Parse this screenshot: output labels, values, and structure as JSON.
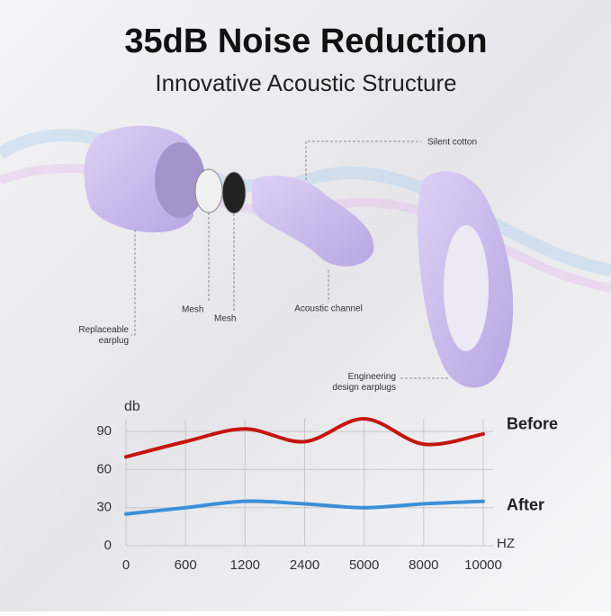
{
  "header": {
    "title": "35dB Noise Reduction",
    "subtitle": "Innovative Acoustic Structure"
  },
  "callouts": [
    "Silent cotton",
    "Mesh",
    "Mesh",
    "Replaceable\nearplug",
    "Acoustic channel",
    "Engineering\ndesign earplugs"
  ],
  "chart_data": {
    "type": "line",
    "categories": [
      "0",
      "600",
      "1200",
      "2400",
      "5000",
      "8000",
      "10000"
    ],
    "y_label": "db",
    "x_label": "HZ",
    "ylim": [
      0,
      100
    ],
    "yticks": [
      0,
      30,
      60,
      90
    ],
    "grid": true,
    "series": [
      {
        "name": "Before",
        "color": "#c4160f",
        "values": [
          70,
          82,
          92,
          82,
          100,
          80,
          88
        ]
      },
      {
        "name": "After",
        "color": "#3b8fd8",
        "values": [
          25,
          30,
          35,
          33,
          30,
          33,
          35
        ]
      }
    ]
  }
}
